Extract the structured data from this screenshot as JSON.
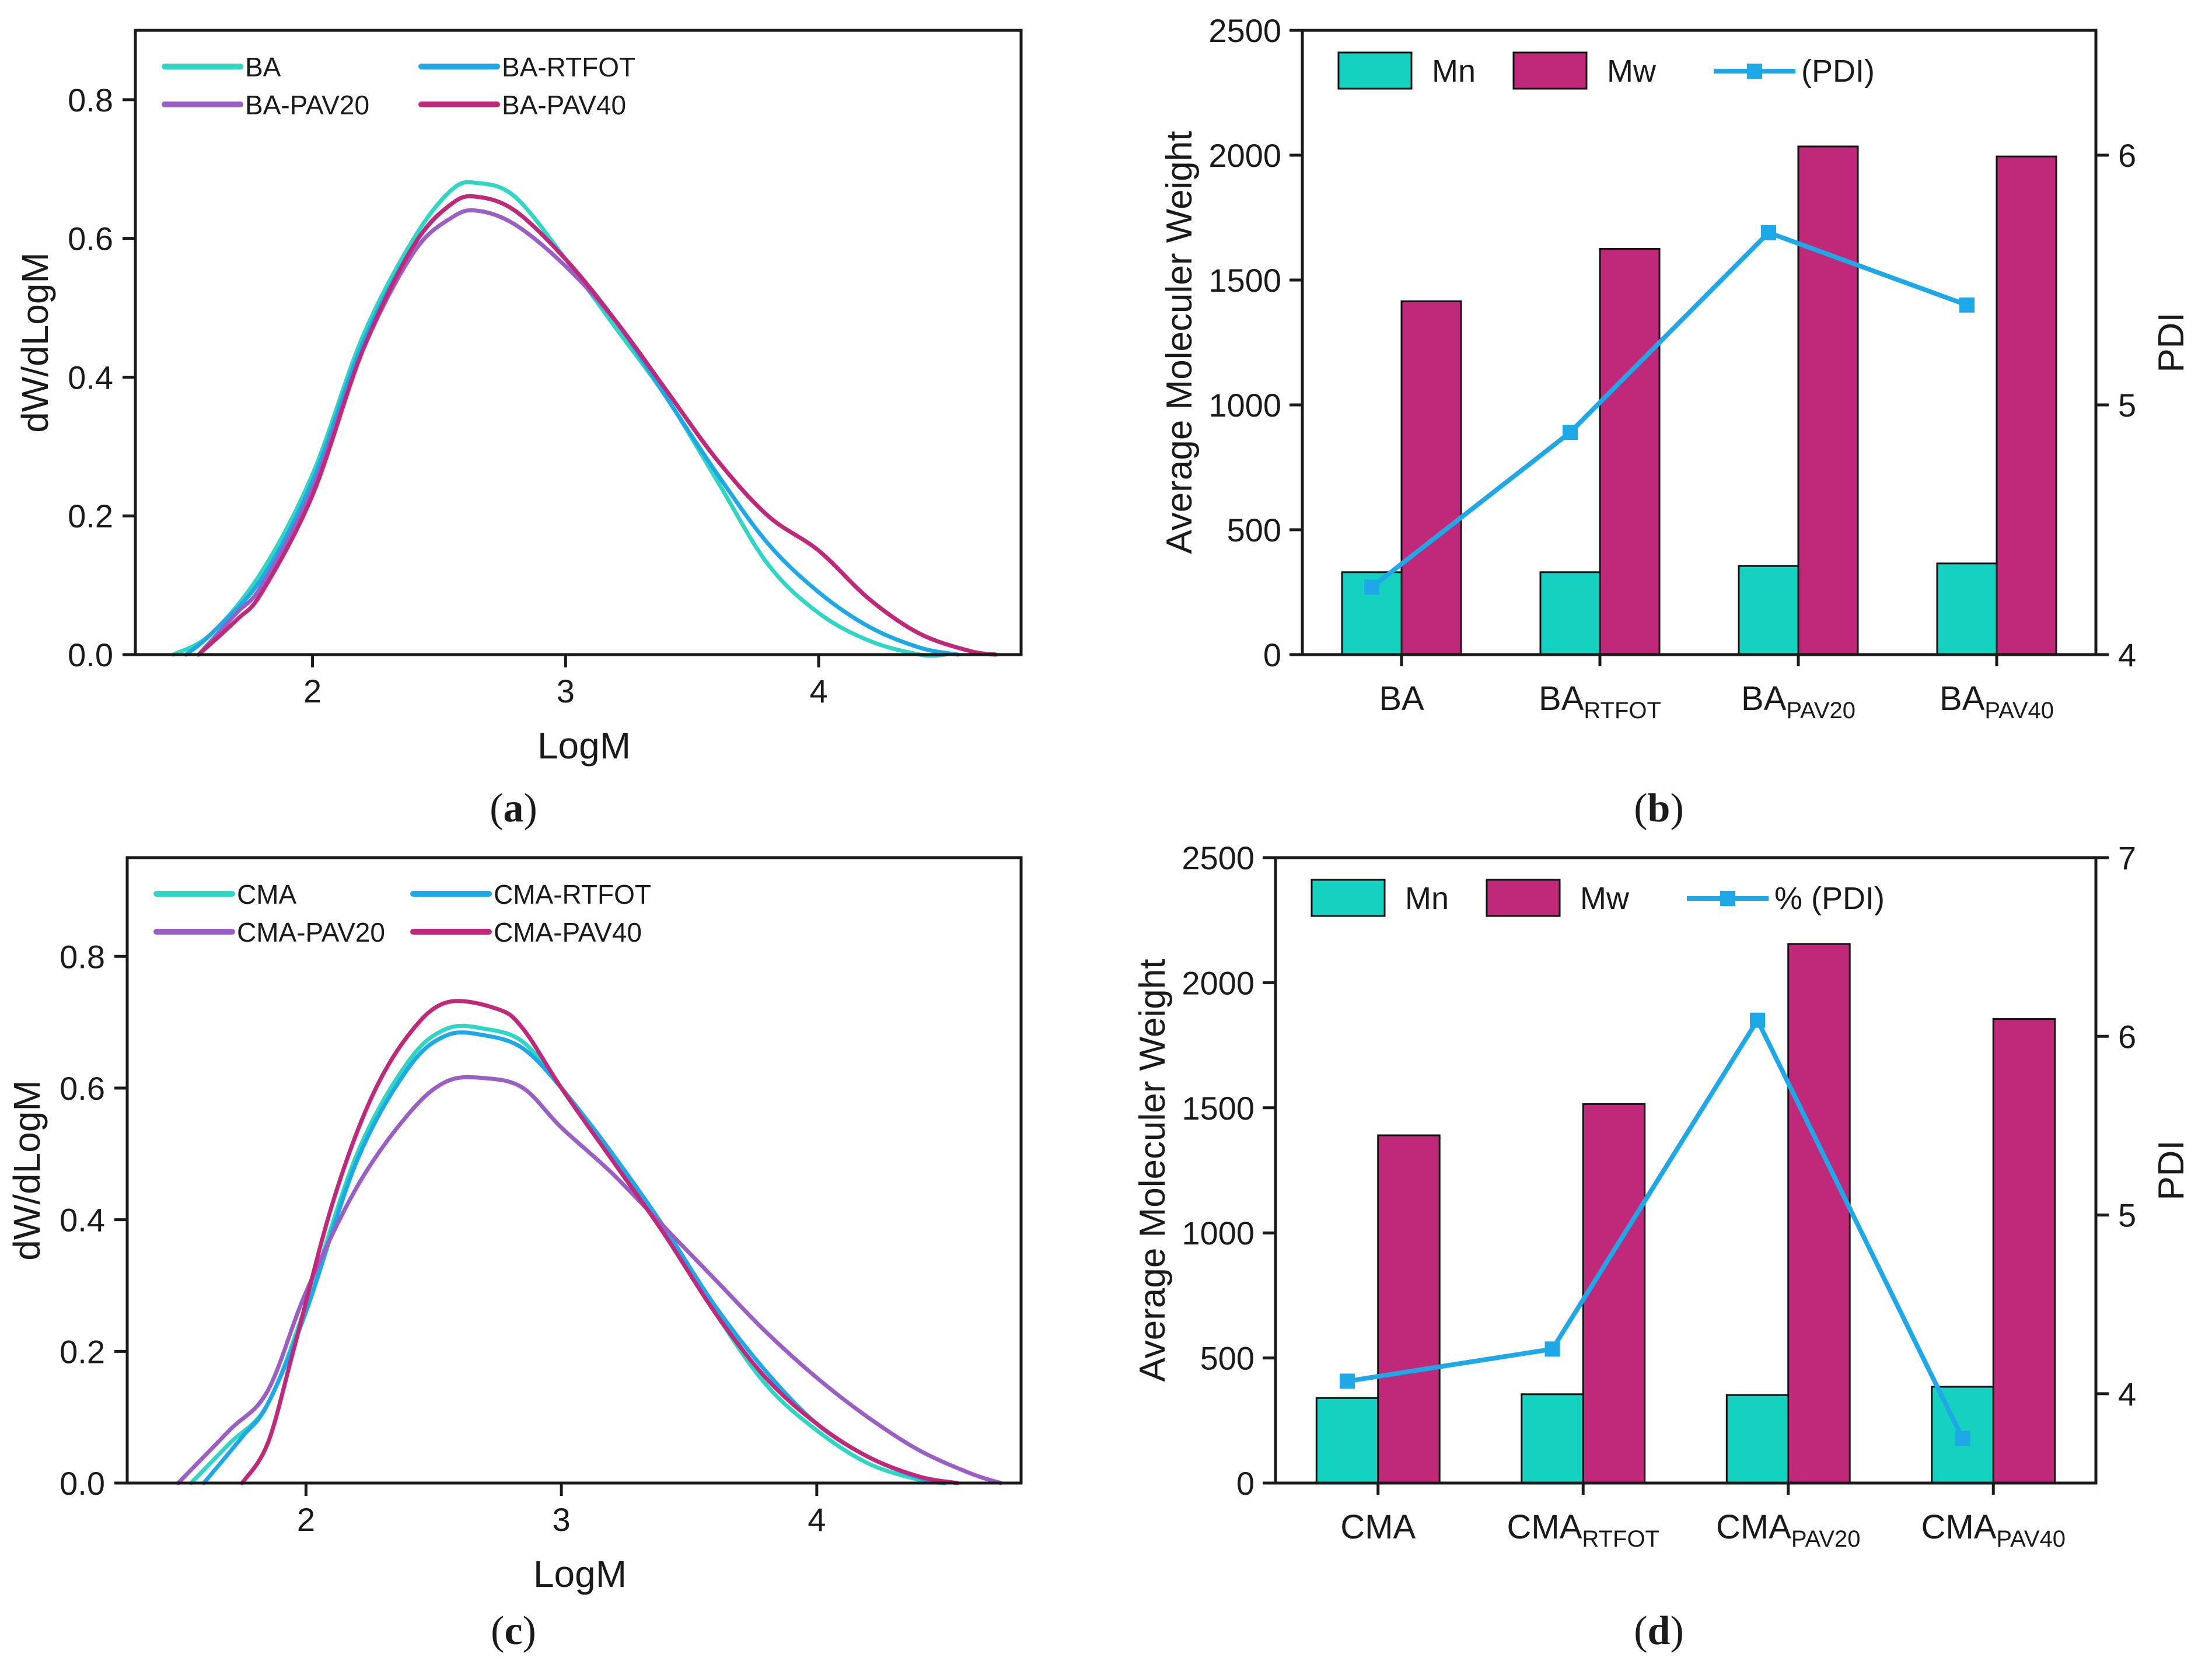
{
  "colors": {
    "ba": "#2fd6c4",
    "rtfot": "#1fa8e8",
    "pav20": "#9a5fc4",
    "pav40": "#c0287a",
    "mn": "#15d1c0",
    "mw": "#c0287a",
    "pdi": "#1fa8e8",
    "axis": "#1a1a1a"
  },
  "chart_data": [
    {
      "id": "a",
      "type": "line",
      "caption_label": "a",
      "xlabel": "LogM",
      "ylabel": "dW/dLogM",
      "xlim": [
        1.3,
        4.8
      ],
      "ylim": [
        0,
        0.9
      ],
      "xticks": [
        "2",
        "3",
        "4"
      ],
      "xtick_values": [
        2,
        3,
        4
      ],
      "yticks": [
        "0.0",
        "0.2",
        "0.4",
        "0.6",
        "0.8"
      ],
      "ytick_values": [
        0,
        0.2,
        0.4,
        0.6,
        0.8
      ],
      "series": [
        {
          "name": "BA",
          "color_key": "ba",
          "x": [
            1.45,
            1.6,
            1.8,
            2.0,
            2.2,
            2.4,
            2.55,
            2.65,
            2.8,
            3.0,
            3.2,
            3.4,
            3.6,
            3.8,
            4.0,
            4.2,
            4.4,
            4.5
          ],
          "y": [
            0.0,
            0.03,
            0.12,
            0.26,
            0.46,
            0.6,
            0.67,
            0.68,
            0.66,
            0.57,
            0.47,
            0.37,
            0.25,
            0.13,
            0.06,
            0.02,
            0.0,
            0.0
          ]
        },
        {
          "name": "BA-RTFOT",
          "color_key": "rtfot",
          "x": [
            1.5,
            1.6,
            1.8,
            2.0,
            2.2,
            2.4,
            2.55,
            2.65,
            2.8,
            3.0,
            3.2,
            3.4,
            3.6,
            3.8,
            4.0,
            4.2,
            4.4,
            4.55
          ],
          "y": [
            0.0,
            0.03,
            0.11,
            0.25,
            0.45,
            0.59,
            0.65,
            0.66,
            0.64,
            0.57,
            0.48,
            0.37,
            0.26,
            0.16,
            0.09,
            0.04,
            0.01,
            0.0
          ]
        },
        {
          "name": "BA-PAV20",
          "color_key": "pav20",
          "x": [
            1.55,
            1.7,
            1.8,
            2.0,
            2.2,
            2.4,
            2.55,
            2.65,
            2.8,
            3.0,
            3.2,
            3.4,
            3.6,
            3.8,
            4.0,
            4.2,
            4.4,
            4.6,
            4.7
          ],
          "y": [
            0.0,
            0.06,
            0.1,
            0.24,
            0.44,
            0.58,
            0.63,
            0.64,
            0.62,
            0.56,
            0.48,
            0.38,
            0.28,
            0.2,
            0.15,
            0.08,
            0.03,
            0.005,
            0.0
          ]
        },
        {
          "name": "BA-PAV40",
          "color_key": "pav40",
          "x": [
            1.55,
            1.7,
            1.8,
            2.0,
            2.2,
            2.4,
            2.55,
            2.65,
            2.8,
            3.0,
            3.2,
            3.4,
            3.6,
            3.8,
            4.0,
            4.2,
            4.4,
            4.6,
            4.7
          ],
          "y": [
            0.0,
            0.05,
            0.09,
            0.23,
            0.44,
            0.59,
            0.65,
            0.66,
            0.64,
            0.57,
            0.48,
            0.38,
            0.28,
            0.2,
            0.15,
            0.08,
            0.03,
            0.005,
            0.0
          ]
        }
      ]
    },
    {
      "id": "b",
      "type": "bar",
      "caption_label": "b",
      "ylabel": "Average Moleculer  Weight",
      "y2label": "PDI",
      "ylim": [
        0,
        2500
      ],
      "y2lim": [
        4,
        6.5
      ],
      "yticks": [
        "0",
        "500",
        "1000",
        "1500",
        "2000",
        "2500"
      ],
      "ytick_values": [
        0,
        500,
        1000,
        1500,
        2000,
        2500
      ],
      "y2ticks": [
        "4",
        "5",
        "6"
      ],
      "y2tick_values": [
        4,
        5,
        6
      ],
      "categories": [
        {
          "base": "BA",
          "sub": ""
        },
        {
          "base": "BA",
          "sub": "RTFOT"
        },
        {
          "base": "BA",
          "sub": "PAV20"
        },
        {
          "base": "BA",
          "sub": "PAV40"
        }
      ],
      "legend_labels": [
        "Mn",
        "Mw",
        "(PDI)"
      ],
      "series": [
        {
          "name": "Mn",
          "color_key": "mn",
          "values": [
            330,
            330,
            355,
            365
          ]
        },
        {
          "name": "Mw",
          "color_key": "mw",
          "values": [
            1415,
            1625,
            2035,
            1995
          ]
        },
        {
          "name": "(PDI)",
          "color_key": "pdi",
          "axis": "right",
          "values": [
            4.27,
            4.89,
            5.69,
            5.4
          ]
        }
      ]
    },
    {
      "id": "c",
      "type": "line",
      "caption_label": "c",
      "xlabel": "LogM",
      "ylabel": "dW/dLogM",
      "xlim": [
        1.3,
        4.8
      ],
      "ylim": [
        0,
        0.95
      ],
      "xticks": [
        "2",
        "3",
        "4"
      ],
      "xtick_values": [
        2,
        3,
        4
      ],
      "yticks": [
        "0.0",
        "0.2",
        "0.4",
        "0.6",
        "0.8"
      ],
      "ytick_values": [
        0,
        0.2,
        0.4,
        0.6,
        0.8
      ],
      "series": [
        {
          "name": "CMA",
          "color_key": "ba",
          "x": [
            1.55,
            1.7,
            1.85,
            2.0,
            2.2,
            2.4,
            2.55,
            2.7,
            2.85,
            3.0,
            3.2,
            3.4,
            3.6,
            3.8,
            4.0,
            4.2,
            4.4,
            4.5
          ],
          "y": [
            0.0,
            0.06,
            0.12,
            0.27,
            0.5,
            0.64,
            0.69,
            0.69,
            0.67,
            0.6,
            0.5,
            0.38,
            0.26,
            0.15,
            0.08,
            0.03,
            0.005,
            0.0
          ]
        },
        {
          "name": "CMA-RTFOT",
          "color_key": "rtfot",
          "x": [
            1.6,
            1.75,
            1.85,
            2.0,
            2.2,
            2.4,
            2.55,
            2.7,
            2.85,
            3.0,
            3.2,
            3.4,
            3.6,
            3.8,
            4.0,
            4.2,
            4.4,
            4.5
          ],
          "y": [
            0.0,
            0.07,
            0.12,
            0.26,
            0.49,
            0.63,
            0.68,
            0.68,
            0.66,
            0.6,
            0.5,
            0.39,
            0.27,
            0.17,
            0.09,
            0.04,
            0.008,
            0.0
          ]
        },
        {
          "name": "CMA-PAV20",
          "color_key": "pav20",
          "x": [
            1.5,
            1.7,
            1.85,
            2.0,
            2.2,
            2.4,
            2.55,
            2.7,
            2.85,
            3.0,
            3.2,
            3.4,
            3.6,
            3.8,
            4.0,
            4.2,
            4.4,
            4.6,
            4.72
          ],
          "y": [
            0.0,
            0.08,
            0.14,
            0.29,
            0.45,
            0.56,
            0.61,
            0.615,
            0.6,
            0.54,
            0.47,
            0.39,
            0.31,
            0.23,
            0.16,
            0.1,
            0.05,
            0.015,
            0.0
          ]
        },
        {
          "name": "CMA-PAV40",
          "color_key": "pav40",
          "x": [
            1.75,
            1.85,
            1.95,
            2.1,
            2.25,
            2.4,
            2.55,
            2.75,
            2.85,
            3.0,
            3.2,
            3.4,
            3.6,
            3.8,
            4.0,
            4.2,
            4.4,
            4.55
          ],
          "y": [
            0.0,
            0.06,
            0.2,
            0.42,
            0.58,
            0.68,
            0.73,
            0.72,
            0.69,
            0.6,
            0.49,
            0.38,
            0.26,
            0.16,
            0.09,
            0.04,
            0.01,
            0.0
          ]
        }
      ]
    },
    {
      "id": "d",
      "type": "bar",
      "caption_label": "d",
      "ylabel": "Average Moleculer  Weight",
      "y2label": "PDI",
      "ylim": [
        0,
        2500
      ],
      "y2lim": [
        3.5,
        7
      ],
      "yticks": [
        "0",
        "500",
        "1000",
        "1500",
        "2000",
        "2500"
      ],
      "ytick_values": [
        0,
        500,
        1000,
        1500,
        2000,
        2500
      ],
      "y2ticks": [
        "4",
        "5",
        "6",
        "7"
      ],
      "y2tick_values": [
        4,
        5,
        6,
        7
      ],
      "categories": [
        {
          "base": "CMA",
          "sub": ""
        },
        {
          "base": "CMA",
          "sub": "RTFOT"
        },
        {
          "base": "CMA",
          "sub": "PAV20"
        },
        {
          "base": "CMA",
          "sub": "PAV40"
        }
      ],
      "legend_labels": [
        "Mn",
        "Mw",
        "% (PDI)"
      ],
      "series": [
        {
          "name": "Mn",
          "color_key": "mn",
          "values": [
            340,
            355,
            352,
            385
          ]
        },
        {
          "name": "Mw",
          "color_key": "mw",
          "values": [
            1390,
            1515,
            2155,
            1855
          ]
        },
        {
          "name": "% (PDI)",
          "color_key": "pdi",
          "axis": "right",
          "values": [
            4.07,
            4.25,
            6.09,
            3.75
          ]
        }
      ]
    }
  ]
}
